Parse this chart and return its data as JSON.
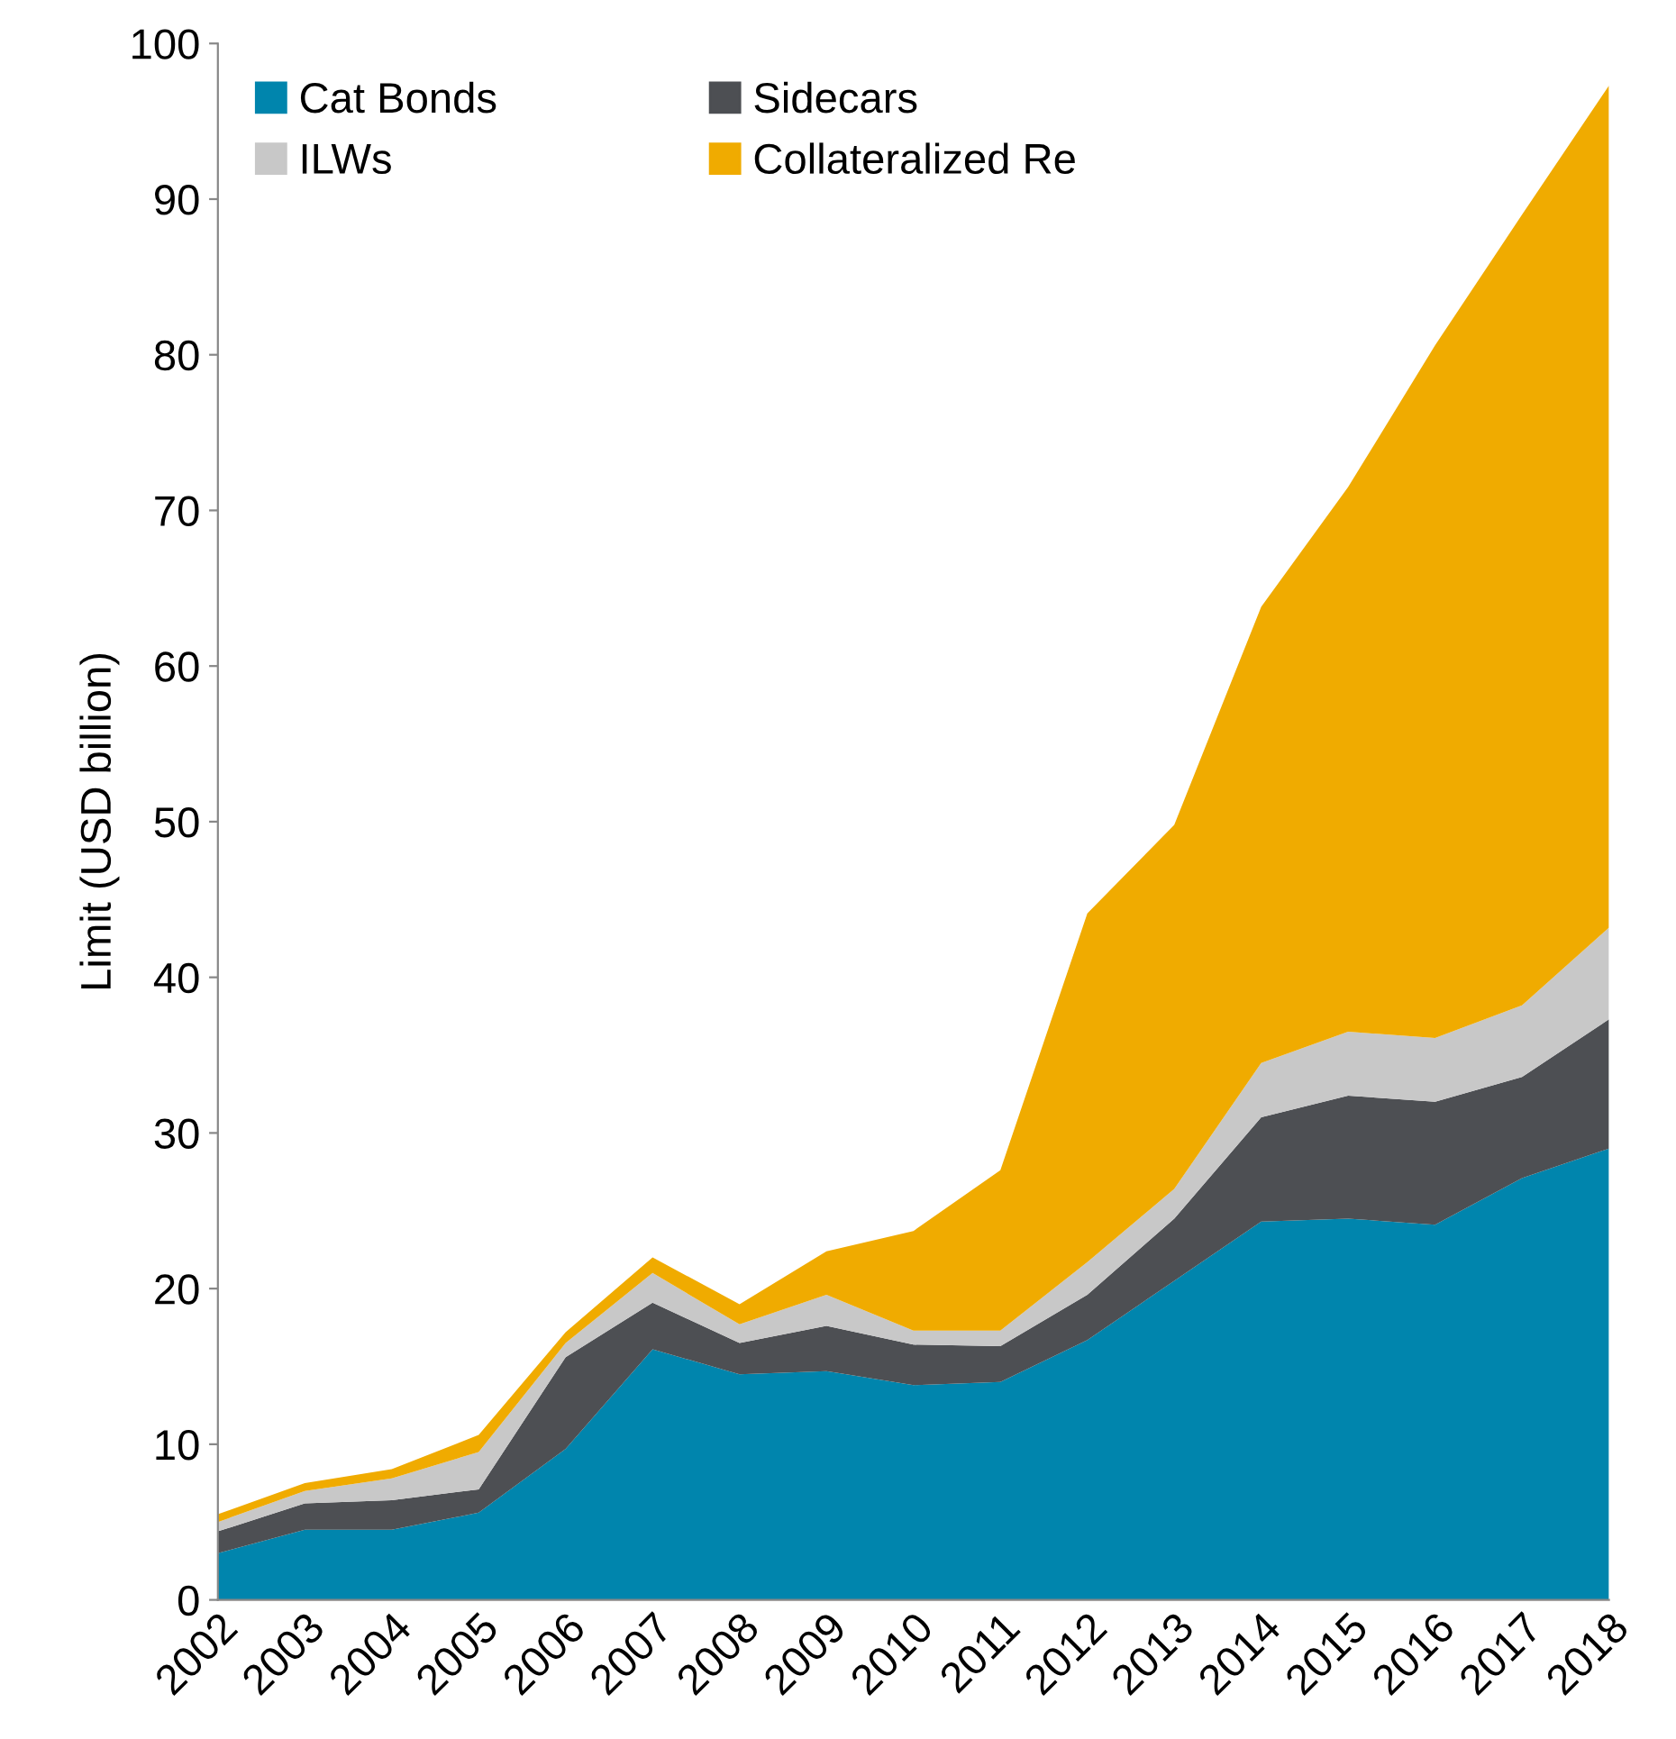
{
  "chart_data": {
    "type": "area",
    "stacked": true,
    "ylabel": "Limit (USD billion)",
    "categories": [
      "2002",
      "2003",
      "2004",
      "2005",
      "2006",
      "2007",
      "2008",
      "2009",
      "2010",
      "2011",
      "2012",
      "2013",
      "2014",
      "2015",
      "2016",
      "2017",
      "2018"
    ],
    "series": [
      {
        "name": "Cat Bonds",
        "color": "#0085ad",
        "values": [
          3.0,
          4.5,
          4.5,
          5.6,
          9.7,
          16.1,
          14.5,
          14.7,
          13.8,
          14.0,
          16.7,
          20.5,
          24.3,
          24.5,
          24.1,
          27.1,
          29.0
        ]
      },
      {
        "name": "Sidecars",
        "color": "#4d4f53",
        "values": [
          1.4,
          1.7,
          1.9,
          1.5,
          5.9,
          3.0,
          2.0,
          2.9,
          2.6,
          2.3,
          2.9,
          4.0,
          6.7,
          7.9,
          7.9,
          6.5,
          8.3
        ]
      },
      {
        "name": "ILWs",
        "color": "#c8c8c8",
        "values": [
          0.6,
          0.8,
          1.4,
          2.4,
          0.9,
          1.9,
          1.2,
          2.0,
          0.9,
          1.0,
          2.1,
          1.9,
          3.5,
          4.1,
          4.1,
          4.6,
          5.9
        ]
      },
      {
        "name": "Collateralized Re",
        "color": "#f0ab00",
        "values": [
          0.5,
          0.5,
          0.6,
          1.1,
          0.7,
          1.0,
          1.3,
          2.8,
          6.4,
          10.3,
          22.4,
          23.4,
          29.3,
          35.0,
          44.5,
          50.8,
          54.1
        ]
      }
    ],
    "ylim": [
      0,
      100
    ],
    "yticks": [
      0,
      10,
      20,
      30,
      40,
      50,
      60,
      70,
      80,
      90,
      100
    ],
    "grid": false,
    "legend": "top left"
  }
}
